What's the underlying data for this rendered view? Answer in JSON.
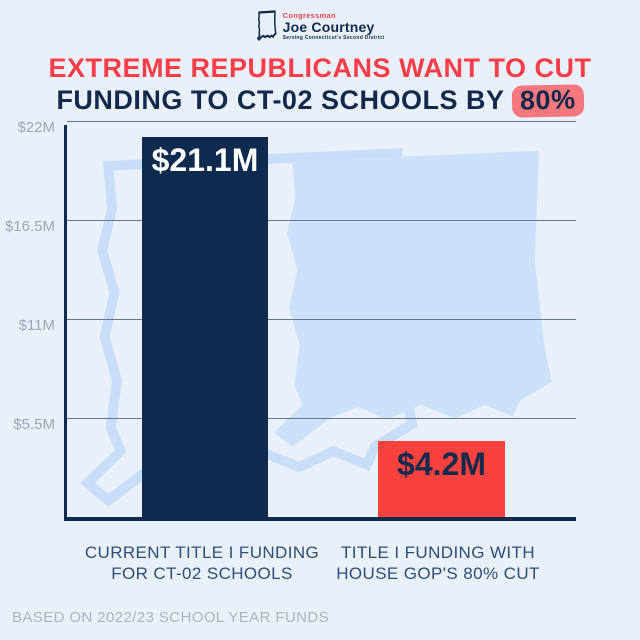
{
  "logo": {
    "eyebrow": "Congressman",
    "name": "Joe Courtney",
    "tagline": "Serving Connecticut's Second District"
  },
  "headline": {
    "line1": "EXTREME REPUBLICANS WANT TO CUT",
    "line2_prefix": "FUNDING TO CT-02 SCHOOLS BY ",
    "line2_highlight": "80%"
  },
  "chart_data": {
    "type": "bar",
    "title": "Extreme Republicans want to cut funding to CT-02 schools by 80%",
    "categories": [
      "CURRENT TITLE I FUNDING FOR CT-02 SCHOOLS",
      "TITLE I FUNDING WITH HOUSE GOP'S 80% CUT"
    ],
    "category_lines": [
      [
        "CURRENT TITLE I FUNDING",
        "FOR CT-02 SCHOOLS"
      ],
      [
        "TITLE I FUNDING WITH",
        "HOUSE GOP'S 80% CUT"
      ]
    ],
    "values": [
      21.1,
      4.2
    ],
    "value_labels": [
      "$21.1M",
      "$4.2M"
    ],
    "bar_colors": [
      "#0E2A4E",
      "#F9413E"
    ],
    "value_label_colors": [
      "#FFFFFF",
      "#122A4D"
    ],
    "unit": "USD millions",
    "ylim": [
      0,
      22
    ],
    "y_ticks": [
      {
        "label": "$22M",
        "value": 22
      },
      {
        "label": "$16.5M",
        "value": 16.5
      },
      {
        "label": "$11M",
        "value": 11
      },
      {
        "label": "$5.5M",
        "value": 5.5
      }
    ],
    "grid": true,
    "legend": false
  },
  "footer": "BASED ON 2022/23 SCHOOL YEAR FUNDS",
  "colors": {
    "background": "#E9F0FA",
    "navy": "#0E2A4E",
    "headline_red": "#FA3E48",
    "bar_red": "#F9413E",
    "highlight_pink": "#F4787E",
    "map_fill": "#CBE1F9",
    "map_outline": "#C7DDF8",
    "gridline": "#66748E",
    "y_tick_text": "#9AA5B9",
    "x_tick_text": "#2F4E78",
    "footer_text": "#A9B3C4"
  }
}
